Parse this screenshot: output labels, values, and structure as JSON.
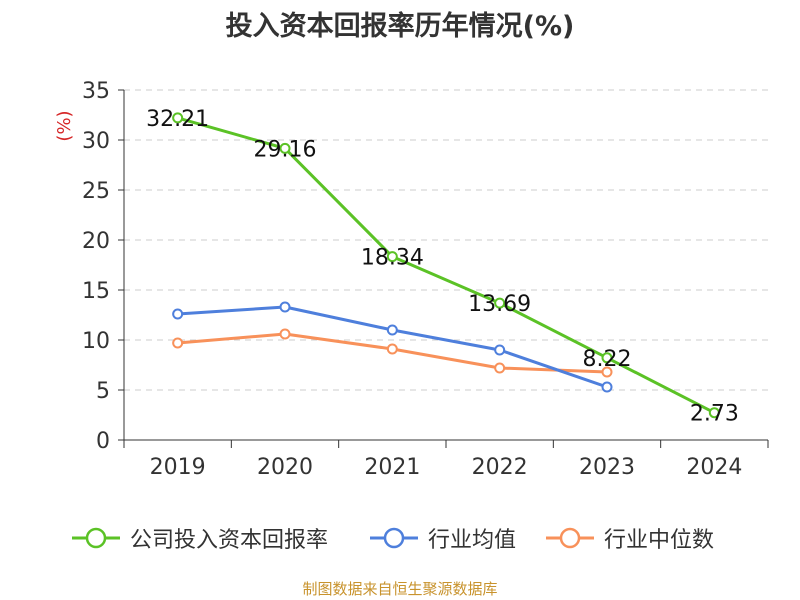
{
  "title": "投入资本回报率历年情况(%)",
  "source": "制图数据来自恒生聚源数据库",
  "chart_data": {
    "type": "line",
    "title": "投入资本回报率历年情况(%)",
    "ylabel": "(%)",
    "xlabel": "",
    "categories": [
      "2019",
      "2020",
      "2021",
      "2022",
      "2023",
      "2024"
    ],
    "ylim": [
      0,
      35
    ],
    "yticks": [
      0,
      5,
      10,
      15,
      20,
      25,
      30,
      35
    ],
    "grid": true,
    "legend_position": "bottom",
    "series": [
      {
        "name": "公司投入资本回报率",
        "color": "#5bc226",
        "values": [
          32.21,
          29.16,
          18.34,
          13.69,
          8.22,
          2.73
        ],
        "labels": [
          "32.21",
          "29.16",
          "18.34",
          "13.69",
          "8.22",
          "2.73"
        ]
      },
      {
        "name": "行业均值",
        "color": "#4e7fdc",
        "values": [
          12.6,
          13.3,
          11.0,
          9.0,
          5.3,
          null
        ]
      },
      {
        "name": "行业中位数",
        "color": "#f8915a",
        "values": [
          9.7,
          10.6,
          9.1,
          7.2,
          6.8,
          null
        ]
      }
    ]
  }
}
